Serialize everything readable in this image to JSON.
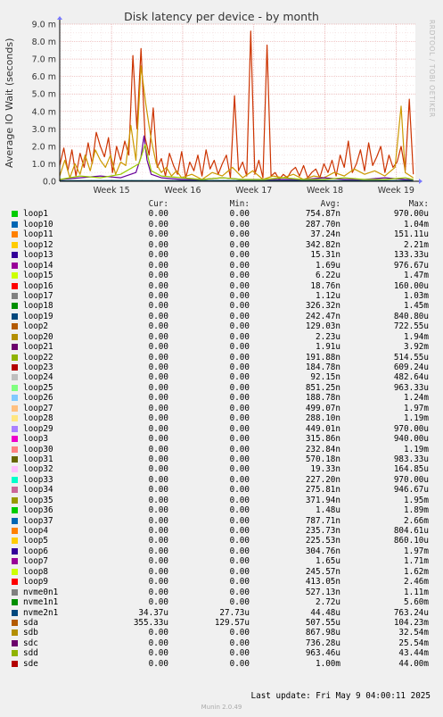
{
  "chart_data": {
    "type": "line",
    "title": "Disk latency per device - by month",
    "ylabel": "Average IO Wait (seconds)",
    "watermark": "RRDTOOL / TOBI OETIKER",
    "ylim": [
      0,
      9.0
    ],
    "yticks": [
      {
        "v": 0,
        "label": "0.0"
      },
      {
        "v": 1.0,
        "label": "1.0 m"
      },
      {
        "v": 2.0,
        "label": "2.0 m"
      },
      {
        "v": 3.0,
        "label": "3.0 m"
      },
      {
        "v": 4.0,
        "label": "4.0 m"
      },
      {
        "v": 5.0,
        "label": "5.0 m"
      },
      {
        "v": 6.0,
        "label": "6.0 m"
      },
      {
        "v": 7.0,
        "label": "7.0 m"
      },
      {
        "v": 8.0,
        "label": "8.0 m"
      },
      {
        "v": 9.0,
        "label": "9.0 m"
      }
    ],
    "xlim": [
      0,
      35
    ],
    "xticks": [
      {
        "v": 5.1,
        "label": "Week 15"
      },
      {
        "v": 12.1,
        "label": "Week 16"
      },
      {
        "v": 19.1,
        "label": "Week 17"
      },
      {
        "v": 26.1,
        "label": "Week 18"
      },
      {
        "v": 33.1,
        "label": "Week 19"
      }
    ],
    "grid": true,
    "series": [
      {
        "name": "sda",
        "color": "#cc3300",
        "x": [
          0,
          0.4,
          0.8,
          1.2,
          1.6,
          2.0,
          2.4,
          2.8,
          3.2,
          3.6,
          4.0,
          4.4,
          4.8,
          5.2,
          5.6,
          6.0,
          6.4,
          6.8,
          7.2,
          7.6,
          8.0,
          8.4,
          8.8,
          9.2,
          9.6,
          10.0,
          10.4,
          10.8,
          11.2,
          11.6,
          12.0,
          12.4,
          12.8,
          13.2,
          13.6,
          14.0,
          14.4,
          14.8,
          15.2,
          15.6,
          16.0,
          16.4,
          16.8,
          17.2,
          17.6,
          18.0,
          18.4,
          18.8,
          19.2,
          19.6,
          20.0,
          20.4,
          20.8,
          21.2,
          21.6,
          22.0,
          22.4,
          22.8,
          23.2,
          23.6,
          24.0,
          24.4,
          24.8,
          25.2,
          25.6,
          26.0,
          26.4,
          26.8,
          27.2,
          27.6,
          28.0,
          28.4,
          28.8,
          29.2,
          29.6,
          30.0,
          30.4,
          30.8,
          31.2,
          31.6,
          32.0,
          32.4,
          32.8,
          33.2,
          33.6,
          34.0,
          34.4,
          34.8
        ],
        "values": [
          0.9,
          1.9,
          0.6,
          1.8,
          0.3,
          1.6,
          0.8,
          2.2,
          1.0,
          2.8,
          2.0,
          1.4,
          2.5,
          0.5,
          2.0,
          1.2,
          2.3,
          1.5,
          7.2,
          3.0,
          7.6,
          2.5,
          1.5,
          4.2,
          0.8,
          1.3,
          0.3,
          1.6,
          0.9,
          0.4,
          1.7,
          0.2,
          1.1,
          0.6,
          1.5,
          0.3,
          1.8,
          0.7,
          1.2,
          0.4,
          1.0,
          1.5,
          0.2,
          4.9,
          0.6,
          1.1,
          0.3,
          8.6,
          0.4,
          1.2,
          0.2,
          7.8,
          0.3,
          0.5,
          0.1,
          0.4,
          0.2,
          0.6,
          0.8,
          0.3,
          0.9,
          0.2,
          0.5,
          0.7,
          0.2,
          1.0,
          0.5,
          1.2,
          0.3,
          1.5,
          0.8,
          2.3,
          0.5,
          1.0,
          1.8,
          0.6,
          2.2,
          0.9,
          1.4,
          2.0,
          0.5,
          1.5,
          0.8,
          1.1,
          2.0,
          0.6,
          4.7,
          0.4
        ]
      },
      {
        "name": "sdb",
        "color": "#cc9900",
        "x": [
          0,
          0.5,
          1.0,
          1.5,
          2.0,
          2.5,
          3.0,
          3.5,
          4.0,
          4.5,
          5.0,
          5.5,
          6.0,
          6.5,
          7.0,
          7.5,
          8.0,
          8.5,
          9.0,
          9.5,
          10.0,
          10.5,
          11.0,
          11.5,
          12.0,
          13.0,
          14.0,
          15.0,
          16.0,
          17.0,
          18.0,
          19.0,
          20.0,
          21.0,
          22.0,
          23.0,
          24.0,
          25.0,
          26.0,
          27.0,
          28.0,
          29.0,
          30.0,
          31.0,
          32.0,
          33.0,
          33.6,
          34.0,
          34.8
        ],
        "values": [
          0.3,
          1.2,
          0.2,
          1.0,
          0.4,
          1.5,
          0.6,
          1.8,
          1.2,
          0.8,
          1.5,
          0.4,
          1.1,
          0.9,
          3.2,
          1.2,
          6.6,
          4.3,
          2.4,
          1.0,
          0.5,
          0.8,
          0.3,
          0.6,
          0.2,
          0.4,
          0.1,
          0.5,
          0.3,
          0.8,
          0.2,
          0.6,
          0.1,
          0.3,
          0.2,
          0.4,
          0.1,
          0.3,
          0.2,
          0.5,
          0.3,
          0.7,
          0.4,
          0.6,
          0.3,
          0.8,
          4.3,
          0.5,
          0.2
        ]
      },
      {
        "name": "sdc",
        "color": "#660099",
        "x": [
          0,
          2,
          4,
          6,
          7.5,
          8.0,
          8.3,
          8.6,
          9.0,
          10,
          12,
          14,
          16,
          18,
          20,
          22,
          24,
          26,
          28,
          30,
          32,
          34,
          34.8
        ],
        "values": [
          0.1,
          0.2,
          0.3,
          0.2,
          0.5,
          1.4,
          2.6,
          1.2,
          0.4,
          0.2,
          0.1,
          0.1,
          0.2,
          0.1,
          0.1,
          0.1,
          0.1,
          0.2,
          0.1,
          0.1,
          0.2,
          0.1,
          0.1
        ]
      },
      {
        "name": "sdd",
        "color": "#99cc00",
        "x": [
          0,
          2,
          4,
          6,
          7.8,
          8.4,
          9.0,
          10,
          12,
          14,
          16,
          18,
          20,
          22,
          24,
          26,
          28,
          30,
          32,
          34,
          34.8
        ],
        "values": [
          0.1,
          0.3,
          0.2,
          0.4,
          1.0,
          2.1,
          0.6,
          0.3,
          0.2,
          0.1,
          0.2,
          0.1,
          0.1,
          0.2,
          0.1,
          0.1,
          0.2,
          0.1,
          0.1,
          0.2,
          0.1
        ]
      },
      {
        "name": "nvme2n1",
        "color": "#004d66",
        "x": [
          0,
          5,
          10,
          15,
          20,
          25,
          30,
          34.8
        ],
        "values": [
          0.03,
          0.04,
          0.03,
          0.04,
          0.03,
          0.04,
          0.03,
          0.04
        ]
      }
    ],
    "legend": {
      "headers": {
        "cur": "Cur:",
        "min": "Min:",
        "avg": "Avg:",
        "max": "Max:"
      },
      "rows": [
        {
          "name": "loop1",
          "color": "#00cc00",
          "cur": "0.00",
          "min": "0.00",
          "avg": "754.87n",
          "max": "970.00u"
        },
        {
          "name": "loop10",
          "color": "#0066b3",
          "cur": "0.00",
          "min": "0.00",
          "avg": "287.70n",
          "max": "1.04m"
        },
        {
          "name": "loop11",
          "color": "#ff8000",
          "cur": "0.00",
          "min": "0.00",
          "avg": "37.24n",
          "max": "151.11u"
        },
        {
          "name": "loop12",
          "color": "#ffcc00",
          "cur": "0.00",
          "min": "0.00",
          "avg": "342.82n",
          "max": "2.21m"
        },
        {
          "name": "loop13",
          "color": "#330099",
          "cur": "0.00",
          "min": "0.00",
          "avg": "15.31n",
          "max": "133.33u"
        },
        {
          "name": "loop14",
          "color": "#990099",
          "cur": "0.00",
          "min": "0.00",
          "avg": "1.69u",
          "max": "976.67u"
        },
        {
          "name": "loop15",
          "color": "#ccff00",
          "cur": "0.00",
          "min": "0.00",
          "avg": "6.22u",
          "max": "1.47m"
        },
        {
          "name": "loop16",
          "color": "#ff0000",
          "cur": "0.00",
          "min": "0.00",
          "avg": "18.76n",
          "max": "160.00u"
        },
        {
          "name": "loop17",
          "color": "#808080",
          "cur": "0.00",
          "min": "0.00",
          "avg": "1.12u",
          "max": "1.03m"
        },
        {
          "name": "loop18",
          "color": "#008f00",
          "cur": "0.00",
          "min": "0.00",
          "avg": "326.32n",
          "max": "1.45m"
        },
        {
          "name": "loop19",
          "color": "#00487d",
          "cur": "0.00",
          "min": "0.00",
          "avg": "242.47n",
          "max": "840.80u"
        },
        {
          "name": "loop2",
          "color": "#b35a00",
          "cur": "0.00",
          "min": "0.00",
          "avg": "129.03n",
          "max": "722.55u"
        },
        {
          "name": "loop20",
          "color": "#b38f00",
          "cur": "0.00",
          "min": "0.00",
          "avg": "2.23u",
          "max": "1.94m"
        },
        {
          "name": "loop21",
          "color": "#6b006b",
          "cur": "0.00",
          "min": "0.00",
          "avg": "1.91u",
          "max": "3.92m"
        },
        {
          "name": "loop22",
          "color": "#8fb300",
          "cur": "0.00",
          "min": "0.00",
          "avg": "191.88n",
          "max": "514.55u"
        },
        {
          "name": "loop23",
          "color": "#b30000",
          "cur": "0.00",
          "min": "0.00",
          "avg": "184.78n",
          "max": "609.24u"
        },
        {
          "name": "loop24",
          "color": "#bebebe",
          "cur": "0.00",
          "min": "0.00",
          "avg": "92.15n",
          "max": "482.64u"
        },
        {
          "name": "loop25",
          "color": "#80ff80",
          "cur": "0.00",
          "min": "0.00",
          "avg": "851.25n",
          "max": "963.33u"
        },
        {
          "name": "loop26",
          "color": "#80c9ff",
          "cur": "0.00",
          "min": "0.00",
          "avg": "188.78n",
          "max": "1.24m"
        },
        {
          "name": "loop27",
          "color": "#ffc080",
          "cur": "0.00",
          "min": "0.00",
          "avg": "499.07n",
          "max": "1.97m"
        },
        {
          "name": "loop28",
          "color": "#ffe680",
          "cur": "0.00",
          "min": "0.00",
          "avg": "288.10n",
          "max": "1.19m"
        },
        {
          "name": "loop29",
          "color": "#aa80ff",
          "cur": "0.00",
          "min": "0.00",
          "avg": "449.01n",
          "max": "970.00u"
        },
        {
          "name": "loop3",
          "color": "#ee00cc",
          "cur": "0.00",
          "min": "0.00",
          "avg": "315.86n",
          "max": "940.00u"
        },
        {
          "name": "loop30",
          "color": "#ff8080",
          "cur": "0.00",
          "min": "0.00",
          "avg": "232.84n",
          "max": "1.19m"
        },
        {
          "name": "loop31",
          "color": "#666600",
          "cur": "0.00",
          "min": "0.00",
          "avg": "570.18n",
          "max": "983.33u"
        },
        {
          "name": "loop32",
          "color": "#ffbfff",
          "cur": "0.00",
          "min": "0.00",
          "avg": "19.33n",
          "max": "164.85u"
        },
        {
          "name": "loop33",
          "color": "#00ffcc",
          "cur": "0.00",
          "min": "0.00",
          "avg": "227.20n",
          "max": "970.00u"
        },
        {
          "name": "loop34",
          "color": "#cc6699",
          "cur": "0.00",
          "min": "0.00",
          "avg": "275.81n",
          "max": "946.67u"
        },
        {
          "name": "loop35",
          "color": "#999900",
          "cur": "0.00",
          "min": "0.00",
          "avg": "371.94n",
          "max": "1.95m"
        },
        {
          "name": "loop36",
          "color": "#00cc00",
          "cur": "0.00",
          "min": "0.00",
          "avg": "1.48u",
          "max": "1.89m"
        },
        {
          "name": "loop37",
          "color": "#0066b3",
          "cur": "0.00",
          "min": "0.00",
          "avg": "787.71n",
          "max": "2.66m"
        },
        {
          "name": "loop4",
          "color": "#ff8000",
          "cur": "0.00",
          "min": "0.00",
          "avg": "235.73n",
          "max": "804.61u"
        },
        {
          "name": "loop5",
          "color": "#ffcc00",
          "cur": "0.00",
          "min": "0.00",
          "avg": "225.53n",
          "max": "860.10u"
        },
        {
          "name": "loop6",
          "color": "#330099",
          "cur": "0.00",
          "min": "0.00",
          "avg": "304.76n",
          "max": "1.97m"
        },
        {
          "name": "loop7",
          "color": "#990099",
          "cur": "0.00",
          "min": "0.00",
          "avg": "1.65u",
          "max": "1.71m"
        },
        {
          "name": "loop8",
          "color": "#ccff00",
          "cur": "0.00",
          "min": "0.00",
          "avg": "245.57n",
          "max": "1.62m"
        },
        {
          "name": "loop9",
          "color": "#ff0000",
          "cur": "0.00",
          "min": "0.00",
          "avg": "413.05n",
          "max": "2.46m"
        },
        {
          "name": "nvme0n1",
          "color": "#808080",
          "cur": "0.00",
          "min": "0.00",
          "avg": "527.13n",
          "max": "1.11m"
        },
        {
          "name": "nvme1n1",
          "color": "#008f00",
          "cur": "0.00",
          "min": "0.00",
          "avg": "2.72u",
          "max": "5.60m"
        },
        {
          "name": "nvme2n1",
          "color": "#00487d",
          "cur": "34.37u",
          "min": "27.73u",
          "avg": "44.48u",
          "max": "763.24u"
        },
        {
          "name": "sda",
          "color": "#b35a00",
          "cur": "355.33u",
          "min": "129.57u",
          "avg": "507.55u",
          "max": "104.23m"
        },
        {
          "name": "sdb",
          "color": "#b38f00",
          "cur": "0.00",
          "min": "0.00",
          "avg": "867.98u",
          "max": "32.54m"
        },
        {
          "name": "sdc",
          "color": "#6b006b",
          "cur": "0.00",
          "min": "0.00",
          "avg": "736.28u",
          "max": "25.54m"
        },
        {
          "name": "sdd",
          "color": "#8fb300",
          "cur": "0.00",
          "min": "0.00",
          "avg": "963.46u",
          "max": "43.44m"
        },
        {
          "name": "sde",
          "color": "#b30000",
          "cur": "0.00",
          "min": "0.00",
          "avg": "1.00m",
          "max": "44.00m"
        }
      ]
    }
  },
  "footer": {
    "last_update": "Last update: Fri May  9 04:00:11 2025",
    "munin_version": "Munin 2.0.49"
  }
}
